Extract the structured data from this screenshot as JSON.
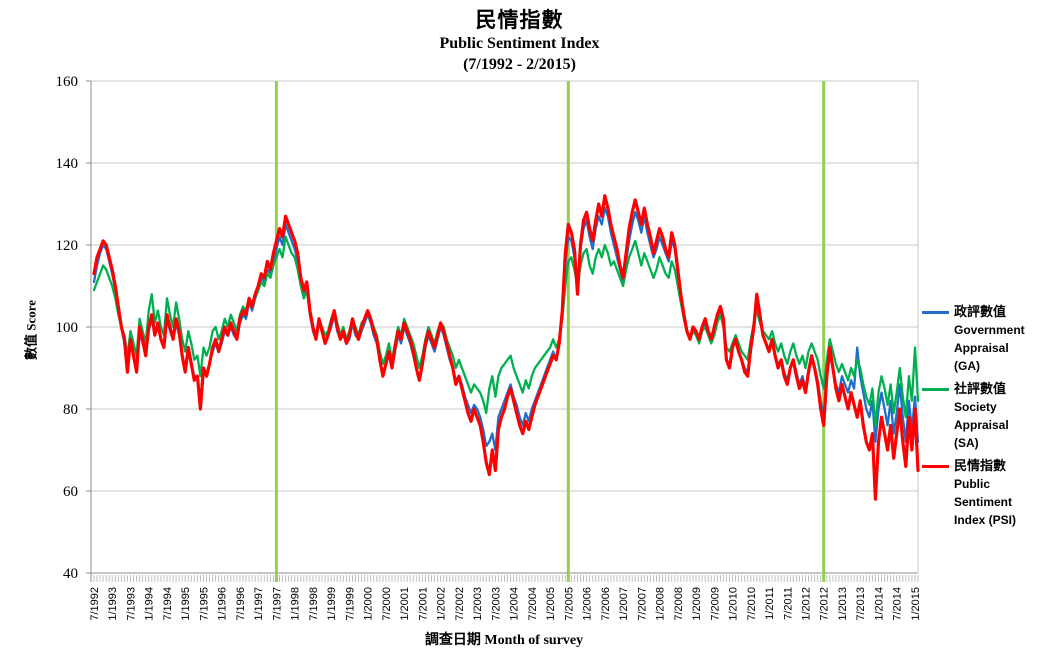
{
  "header": {
    "title_zh": "民情指數",
    "title_en": "Public Sentiment Index",
    "title_range": "(7/1992 - 2/2015)"
  },
  "legend": {
    "items": [
      {
        "zh": "政評數值",
        "en1": "Government",
        "en2": "Appraisal",
        "en3": "(GA)"
      },
      {
        "zh": "社評數值",
        "en1": "Society",
        "en2": "Appraisal",
        "en3": "(SA)"
      },
      {
        "zh": "民情指數",
        "en1": "Public",
        "en2": "Sentiment",
        "en3": "Index (PSI)"
      }
    ]
  },
  "chart_data": {
    "type": "line",
    "title": "民情指數 Public Sentiment Index (7/1992 - 2/2015)",
    "xlabel": "調查日期  Month of survey",
    "ylabel": "數值 Score",
    "ylim": [
      40,
      160
    ],
    "ytick_step": 20,
    "y_tick_labels": [
      "40",
      "60",
      "80",
      "100",
      "120",
      "140",
      "160"
    ],
    "grid": true,
    "legend_position": "right",
    "months_start": "7/1992",
    "months_end": "2/2015",
    "x_tick_every_months": 6,
    "x_tick_labels": [
      "7/1992",
      "1/1993",
      "7/1993",
      "1/1994",
      "7/1994",
      "1/1995",
      "7/1995",
      "1/1996",
      "7/1996",
      "1/1997",
      "7/1997",
      "1/1998",
      "7/1998",
      "1/1999",
      "7/1999",
      "1/2000",
      "7/2000",
      "1/2001",
      "7/2001",
      "1/2002",
      "7/2002",
      "1/2003",
      "7/2003",
      "1/2004",
      "7/2004",
      "1/2005",
      "7/2005",
      "1/2006",
      "7/2006",
      "1/2007",
      "7/2007",
      "1/2008",
      "7/2008",
      "1/2009",
      "7/2009",
      "1/2010",
      "7/2010",
      "1/2011",
      "7/2011",
      "1/2012",
      "7/2012",
      "1/2013",
      "7/2013",
      "1/2014",
      "7/2014",
      "1/2015"
    ],
    "vlines": {
      "color": "#92D050",
      "at_labels": [
        "7/1997",
        "7/2005",
        "7/2012"
      ],
      "month_indices": [
        60,
        156,
        240
      ]
    },
    "colors": {
      "gridline": "#C8C8C8",
      "axis": "#8C8C8C",
      "minor_tick": "#C0C0C0"
    },
    "series": [
      {
        "id": "ga",
        "name": "政評數值 Government Appraisal (GA)",
        "color": "#1F6EC8",
        "stroke_width": 2.3,
        "values": [
          111,
          115,
          118,
          120,
          119,
          116,
          113,
          109,
          104,
          100,
          96,
          90,
          96,
          93,
          90,
          99,
          96,
          93,
          99,
          102,
          98,
          100,
          97,
          95,
          102,
          99,
          97,
          101,
          98,
          93,
          90,
          94,
          91,
          88,
          88,
          82,
          90,
          88,
          91,
          94,
          96,
          94,
          96,
          99,
          98,
          100,
          98,
          97,
          101,
          103,
          102,
          106,
          104,
          107,
          109,
          112,
          111,
          114,
          113,
          116,
          119,
          122,
          120,
          125,
          123,
          121,
          119,
          116,
          111,
          108,
          110,
          103,
          99,
          97,
          101,
          99,
          96,
          98,
          100,
          103,
          99,
          97,
          98,
          96,
          97,
          101,
          98,
          97,
          99,
          101,
          103,
          101,
          98,
          96,
          92,
          88,
          91,
          93,
          90,
          94,
          98,
          96,
          100,
          98,
          96,
          93,
          90,
          87,
          91,
          95,
          98,
          96,
          94,
          97,
          100,
          98,
          95,
          92,
          90,
          87,
          88,
          86,
          83,
          81,
          79,
          81,
          80,
          78,
          75,
          71,
          72,
          74,
          70,
          78,
          80,
          82,
          84,
          86,
          83,
          81,
          78,
          76,
          79,
          77,
          80,
          82,
          84,
          86,
          88,
          90,
          92,
          94,
          92,
          96,
          103,
          115,
          122,
          121,
          117,
          108,
          119,
          124,
          126,
          122,
          119,
          124,
          127,
          125,
          129,
          127,
          123,
          120,
          117,
          114,
          111,
          116,
          121,
          125,
          128,
          126,
          123,
          127,
          123,
          120,
          117,
          119,
          122,
          120,
          118,
          116,
          121,
          119,
          113,
          107,
          102,
          99,
          97,
          99,
          98,
          97,
          99,
          101,
          99,
          97,
          99,
          102,
          104,
          101,
          92,
          91,
          95,
          97,
          94,
          92,
          90,
          89,
          94,
          99,
          106,
          102,
          98,
          96,
          94,
          96,
          93,
          91,
          92,
          89,
          87,
          90,
          92,
          89,
          86,
          88,
          85,
          89,
          92,
          90,
          87,
          82,
          78,
          88,
          93,
          90,
          86,
          84,
          88,
          86,
          84,
          87,
          85,
          95,
          88,
          84,
          80,
          78,
          82,
          72,
          80,
          84,
          80,
          76,
          82,
          74,
          79,
          86,
          78,
          72,
          82,
          75,
          83,
          72
        ]
      },
      {
        "id": "sa",
        "name": "社評數值 Society Appraisal (SA)",
        "color": "#00B050",
        "stroke_width": 2.3,
        "values": [
          109,
          111,
          113,
          115,
          114,
          112,
          110,
          107,
          103,
          100,
          98,
          93,
          99,
          96,
          93,
          102,
          99,
          96,
          104,
          108,
          101,
          104,
          100,
          98,
          107,
          103,
          100,
          106,
          102,
          97,
          94,
          99,
          96,
          92,
          93,
          88,
          95,
          93,
          95,
          99,
          100,
          97,
          99,
          102,
          100,
          103,
          101,
          99,
          103,
          105,
          104,
          107,
          105,
          107,
          109,
          111,
          110,
          113,
          112,
          115,
          117,
          119,
          117,
          122,
          120,
          118,
          117,
          114,
          110,
          107,
          109,
          103,
          100,
          98,
          102,
          100,
          98,
          99,
          102,
          104,
          101,
          98,
          100,
          97,
          99,
          102,
          100,
          98,
          101,
          102,
          104,
          102,
          100,
          98,
          94,
          91,
          93,
          96,
          92,
          96,
          100,
          98,
          102,
          100,
          98,
          96,
          93,
          90,
          93,
          97,
          100,
          98,
          96,
          99,
          101,
          100,
          97,
          95,
          93,
          90,
          92,
          90,
          88,
          86,
          84,
          86,
          85,
          84,
          82,
          79,
          85,
          88,
          83,
          88,
          90,
          91,
          92,
          93,
          90,
          88,
          86,
          84,
          87,
          85,
          88,
          90,
          91,
          92,
          93,
          94,
          95,
          97,
          95,
          97,
          102,
          110,
          116,
          117,
          114,
          110,
          115,
          118,
          119,
          115,
          113,
          117,
          119,
          117,
          120,
          118,
          115,
          116,
          114,
          112,
          110,
          114,
          117,
          119,
          121,
          118,
          115,
          118,
          116,
          114,
          112,
          114,
          117,
          115,
          113,
          112,
          116,
          114,
          110,
          106,
          102,
          99,
          97,
          99,
          98,
          96,
          99,
          100,
          98,
          96,
          98,
          101,
          103,
          100,
          95,
          94,
          96,
          98,
          96,
          94,
          93,
          92,
          97,
          101,
          104,
          101,
          99,
          98,
          97,
          99,
          96,
          94,
          96,
          93,
          91,
          94,
          96,
          93,
          91,
          93,
          90,
          94,
          96,
          94,
          92,
          88,
          85,
          92,
          97,
          94,
          91,
          89,
          91,
          89,
          87,
          90,
          88,
          92,
          90,
          86,
          83,
          81,
          85,
          76,
          84,
          88,
          85,
          81,
          86,
          79,
          84,
          90,
          83,
          78,
          88,
          82,
          95,
          82
        ]
      },
      {
        "id": "psi",
        "name": "民情指數 Public Sentiment Index (PSI)",
        "color": "#FF0000",
        "stroke_width": 3.2,
        "values": [
          113,
          117,
          119,
          121,
          120,
          117,
          114,
          110,
          105,
          100,
          97,
          89,
          97,
          93,
          89,
          100,
          97,
          93,
          100,
          103,
          98,
          101,
          97,
          95,
          103,
          100,
          97,
          102,
          99,
          93,
          89,
          95,
          91,
          87,
          88,
          80,
          90,
          88,
          91,
          95,
          97,
          94,
          97,
          100,
          98,
          101,
          99,
          97,
          102,
          104,
          103,
          107,
          105,
          108,
          110,
          113,
          112,
          116,
          114,
          118,
          121,
          124,
          122,
          127,
          125,
          123,
          121,
          118,
          112,
          109,
          111,
          104,
          100,
          97,
          102,
          99,
          96,
          98,
          101,
          104,
          100,
          97,
          99,
          96,
          98,
          102,
          99,
          97,
          100,
          102,
          104,
          102,
          99,
          97,
          92,
          88,
          91,
          94,
          90,
          95,
          99,
          97,
          101,
          99,
          97,
          94,
          90,
          87,
          91,
          96,
          99,
          97,
          95,
          98,
          101,
          99,
          96,
          93,
          90,
          86,
          88,
          85,
          82,
          79,
          77,
          80,
          78,
          76,
          72,
          67,
          64,
          70,
          65,
          75,
          78,
          80,
          83,
          85,
          82,
          79,
          76,
          74,
          77,
          75,
          78,
          81,
          83,
          85,
          87,
          89,
          91,
          93,
          92,
          96,
          104,
          118,
          125,
          123,
          119,
          108,
          120,
          126,
          128,
          124,
          121,
          126,
          130,
          127,
          132,
          129,
          125,
          122,
          119,
          115,
          112,
          118,
          124,
          128,
          131,
          128,
          125,
          129,
          125,
          122,
          118,
          121,
          124,
          122,
          119,
          117,
          123,
          120,
          114,
          108,
          103,
          99,
          97,
          100,
          99,
          97,
          100,
          102,
          99,
          97,
          100,
          103,
          105,
          102,
          92,
          90,
          95,
          97,
          94,
          92,
          89,
          88,
          95,
          100,
          108,
          103,
          98,
          96,
          94,
          97,
          93,
          90,
          92,
          88,
          86,
          90,
          92,
          88,
          85,
          87,
          84,
          89,
          93,
          90,
          86,
          80,
          76,
          88,
          95,
          90,
          85,
          82,
          86,
          83,
          80,
          84,
          81,
          78,
          82,
          76,
          72,
          70,
          74,
          58,
          72,
          78,
          74,
          70,
          76,
          68,
          74,
          80,
          72,
          66,
          78,
          70,
          80,
          65
        ]
      }
    ]
  }
}
